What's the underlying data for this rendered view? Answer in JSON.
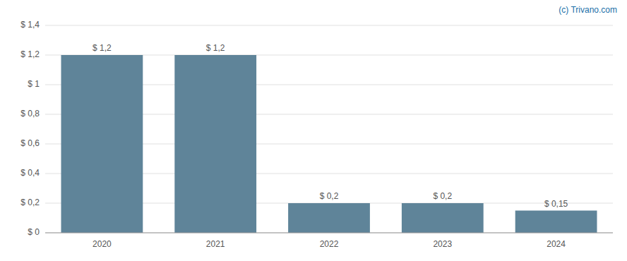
{
  "chart_data": {
    "type": "bar",
    "categories": [
      "2020",
      "2021",
      "2022",
      "2023",
      "2024"
    ],
    "values": [
      1.2,
      1.2,
      0.2,
      0.2,
      0.15
    ],
    "value_labels": [
      "$ 1,2",
      "$ 1,2",
      "$ 0,2",
      "$ 0,2",
      "$ 0,15"
    ],
    "data_labels": true,
    "color": "#5f8499",
    "ylim": [
      0,
      1.4
    ],
    "yticks": [
      {
        "value": 0,
        "label": "$ 0"
      },
      {
        "value": 0.2,
        "label": "$ 0,2"
      },
      {
        "value": 0.4,
        "label": "$ 0,4"
      },
      {
        "value": 0.6,
        "label": "$ 0,6"
      },
      {
        "value": 0.8,
        "label": "$ 0,8"
      },
      {
        "value": 1.0,
        "label": "$ 1"
      },
      {
        "value": 1.2,
        "label": "$ 1,2"
      },
      {
        "value": 1.4,
        "label": "$ 1,4"
      }
    ],
    "grid": true,
    "annotations": [
      "(c) Trivano.com"
    ]
  }
}
